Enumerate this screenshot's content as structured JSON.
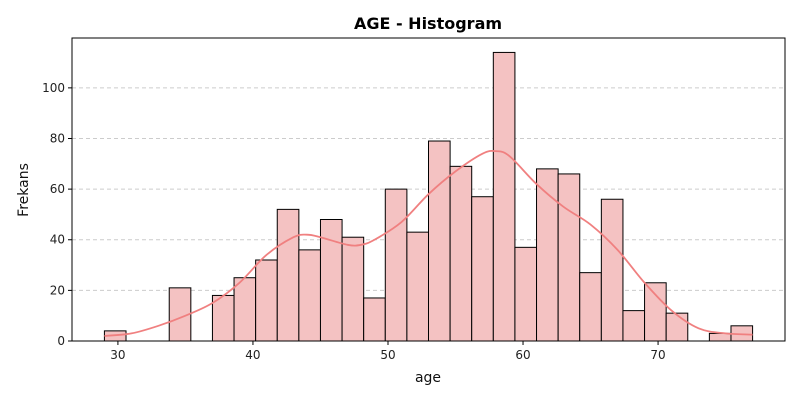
{
  "chart_data": {
    "type": "bar",
    "subtype": "histogram",
    "title": "AGE - Histogram",
    "xlabel": "age",
    "ylabel": "Frekans",
    "xlim": [
      26.6,
      79.4
    ],
    "ylim": [
      0,
      119.7
    ],
    "xticks": [
      30,
      40,
      50,
      60,
      70
    ],
    "yticks": [
      0,
      20,
      40,
      60,
      80,
      100
    ],
    "grid": {
      "y": true,
      "x": false,
      "style": "dashed"
    },
    "colors": {
      "bar_fill": "#f4c2c2",
      "bar_edge": "#000000",
      "kde_line": "#f08080",
      "grid": "#cccccc"
    },
    "bins": [
      {
        "x0": 29.0,
        "x1": 30.6,
        "count": 4
      },
      {
        "x0": 30.6,
        "x1": 32.2,
        "count": 0
      },
      {
        "x0": 32.2,
        "x1": 33.8,
        "count": 0
      },
      {
        "x0": 33.8,
        "x1": 35.4,
        "count": 21
      },
      {
        "x0": 35.4,
        "x1": 37.0,
        "count": 0
      },
      {
        "x0": 37.0,
        "x1": 38.6,
        "count": 18
      },
      {
        "x0": 38.6,
        "x1": 40.2,
        "count": 25
      },
      {
        "x0": 40.2,
        "x1": 41.8,
        "count": 32
      },
      {
        "x0": 41.8,
        "x1": 43.4,
        "count": 52
      },
      {
        "x0": 43.4,
        "x1": 45.0,
        "count": 36
      },
      {
        "x0": 45.0,
        "x1": 46.6,
        "count": 48
      },
      {
        "x0": 46.6,
        "x1": 48.2,
        "count": 41
      },
      {
        "x0": 48.2,
        "x1": 49.8,
        "count": 17
      },
      {
        "x0": 49.8,
        "x1": 51.4,
        "count": 60
      },
      {
        "x0": 51.4,
        "x1": 53.0,
        "count": 43
      },
      {
        "x0": 53.0,
        "x1": 54.6,
        "count": 79
      },
      {
        "x0": 54.6,
        "x1": 56.2,
        "count": 69
      },
      {
        "x0": 56.2,
        "x1": 57.8,
        "count": 57
      },
      {
        "x0": 57.8,
        "x1": 59.4,
        "count": 114
      },
      {
        "x0": 59.4,
        "x1": 61.0,
        "count": 37
      },
      {
        "x0": 61.0,
        "x1": 62.6,
        "count": 68
      },
      {
        "x0": 62.6,
        "x1": 64.2,
        "count": 66
      },
      {
        "x0": 64.2,
        "x1": 65.8,
        "count": 27
      },
      {
        "x0": 65.8,
        "x1": 67.4,
        "count": 56
      },
      {
        "x0": 67.4,
        "x1": 69.0,
        "count": 12
      },
      {
        "x0": 69.0,
        "x1": 70.6,
        "count": 23
      },
      {
        "x0": 70.6,
        "x1": 72.2,
        "count": 11
      },
      {
        "x0": 72.2,
        "x1": 73.8,
        "count": 0
      },
      {
        "x0": 73.8,
        "x1": 75.4,
        "count": 3
      },
      {
        "x0": 75.4,
        "x1": 77.0,
        "count": 6
      }
    ],
    "kde": {
      "x": [
        29,
        31,
        33,
        35,
        37,
        39,
        41,
        43,
        44,
        45,
        47,
        48,
        49,
        51,
        53,
        55,
        57,
        58,
        59,
        61,
        63,
        65,
        67,
        69,
        71,
        73,
        75,
        77
      ],
      "y": [
        2,
        3,
        6,
        10,
        15,
        23,
        34,
        41,
        42,
        41,
        38,
        38,
        40,
        47,
        58,
        67,
        74,
        75,
        73,
        62,
        53,
        46,
        36,
        23,
        12,
        5,
        3,
        2.5
      ]
    }
  }
}
